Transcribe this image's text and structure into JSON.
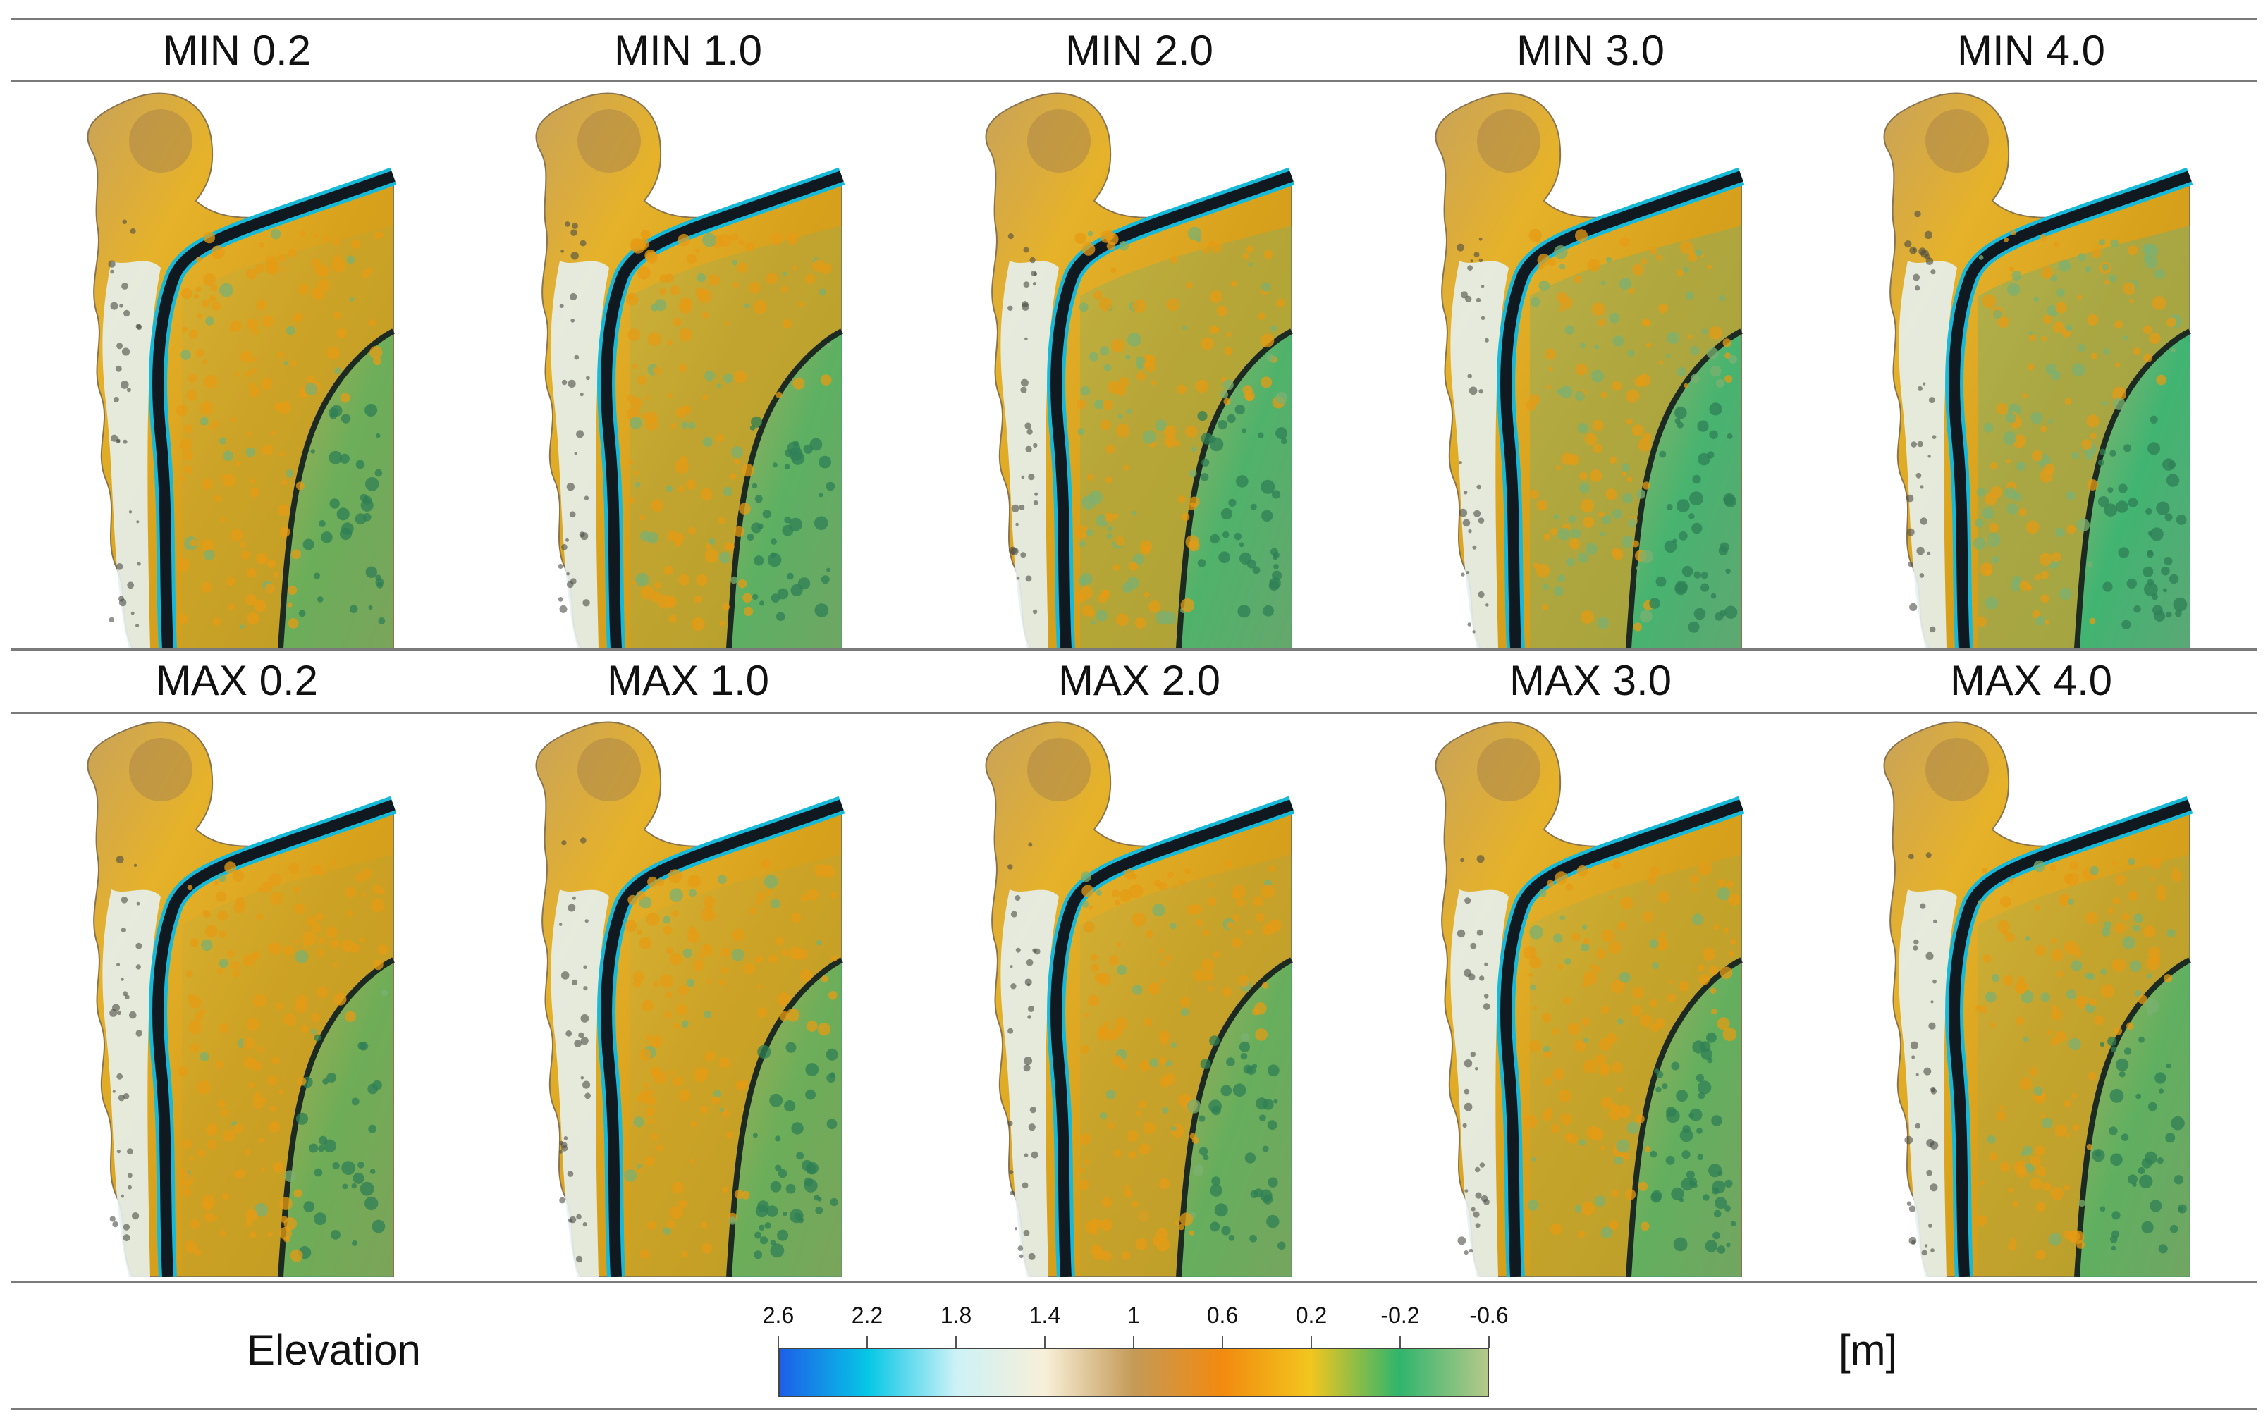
{
  "figure": {
    "top_row": {
      "labels": [
        "MIN 0.2",
        "MIN 1.0",
        "MIN 2.0",
        "MIN 3.0",
        "MIN 4.0"
      ],
      "green_level": [
        0.25,
        0.45,
        0.65,
        0.8,
        0.9
      ]
    },
    "bottom_row": {
      "labels": [
        "MAX 0.2",
        "MAX 1.0",
        "MAX 2.0",
        "MAX 3.0",
        "MAX 4.0"
      ],
      "green_level": [
        0.2,
        0.25,
        0.3,
        0.35,
        0.4
      ]
    }
  },
  "legend": {
    "title": "Elevation",
    "unit": "[m]",
    "ticks": [
      "2.6",
      "2.2",
      "1.8",
      "1.4",
      "1",
      "0.6",
      "0.2",
      "-0.2",
      "-0.6"
    ],
    "colors": {
      "deep_blue": "#1d5fe8",
      "cyan": "#06c7e6",
      "light_cyan": "#cdf2f7",
      "cream": "#f8efd8",
      "tan": "#c49a57",
      "orange": "#f28a0f",
      "yellow": "#f2c61e",
      "green": "#2fb56c",
      "pale_green": "#b5c98a"
    }
  }
}
